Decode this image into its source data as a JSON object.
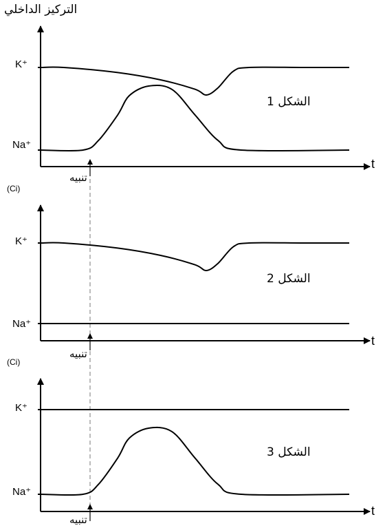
{
  "y_axis_title": "التركيز الداخلي",
  "ci_label": "(Ci)",
  "x_axis_symbol": "t",
  "stimulus_label": "تنبيه",
  "ion_labels": {
    "k": "K⁺",
    "na": "Na⁺"
  },
  "chart_data": [
    {
      "type": "line",
      "title": "الشكل 1",
      "ylabel": "التركيز الداخلي",
      "xlabel": "t",
      "series": [
        {
          "name": "K⁺",
          "x": [
            0,
            0.3,
            1.0,
            1.55,
            2.0,
            2.15,
            2.3,
            2.5,
            2.7,
            3.4,
            4.0
          ],
          "y": [
            1.0,
            1.0,
            0.93,
            0.83,
            0.7,
            0.62,
            0.72,
            0.95,
            1.0,
            1.0,
            1.0
          ]
        },
        {
          "name": "Na⁺",
          "x": [
            0,
            0.55,
            0.75,
            1.0,
            1.15,
            1.4,
            1.7,
            2.0,
            2.3,
            2.6,
            4.0
          ],
          "y": [
            0.0,
            0.0,
            0.15,
            0.55,
            0.85,
            1.0,
            0.95,
            0.55,
            0.15,
            0.0,
            0.0
          ]
        }
      ],
      "stimulus_x": 0.55
    },
    {
      "type": "line",
      "title": "الشكل 2",
      "ylabel": "(Ci)",
      "xlabel": "t",
      "series": [
        {
          "name": "K⁺",
          "x": [
            0,
            0.3,
            1.0,
            1.55,
            2.0,
            2.15,
            2.3,
            2.5,
            2.7,
            3.4,
            4.0
          ],
          "y": [
            1.0,
            1.0,
            0.93,
            0.83,
            0.7,
            0.62,
            0.72,
            0.95,
            1.0,
            1.0,
            1.0
          ]
        },
        {
          "name": "Na⁺",
          "x": [
            0,
            4.0
          ],
          "y": [
            0.0,
            0.0
          ]
        }
      ],
      "stimulus_x": 0.55
    },
    {
      "type": "line",
      "title": "الشكل 3",
      "ylabel": "(Ci)",
      "xlabel": "t",
      "series": [
        {
          "name": "K⁺",
          "x": [
            0,
            4.0
          ],
          "y": [
            1.0,
            1.0
          ]
        },
        {
          "name": "Na⁺",
          "x": [
            0,
            0.55,
            0.75,
            1.0,
            1.15,
            1.4,
            1.7,
            2.0,
            2.3,
            2.6,
            4.0
          ],
          "y": [
            0.0,
            0.0,
            0.15,
            0.55,
            0.85,
            1.0,
            0.95,
            0.55,
            0.15,
            0.0,
            0.0
          ]
        }
      ],
      "stimulus_x": 0.55
    }
  ]
}
